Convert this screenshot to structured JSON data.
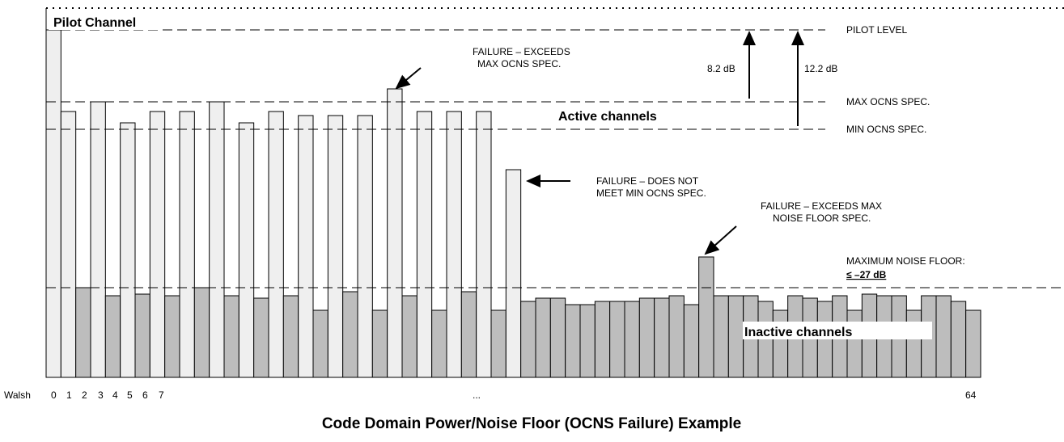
{
  "pilot_channel": "Pilot Channel",
  "active_channels": "Active channels",
  "inactive_channels": "Inactive channels",
  "levels": {
    "pilot": "PILOT LEVEL",
    "max_ocns": "MAX OCNS SPEC.",
    "min_ocns": "MIN OCNS SPEC.",
    "noise_floor": [
      "MAXIMUM NOISE FLOOR:",
      "≤ –27 dB"
    ]
  },
  "arrows": [
    "8.2 dB",
    "12.2 dB"
  ],
  "annotations": [
    [
      "FAILURE – EXCEEDS",
      "MAX OCNS SPEC."
    ],
    [
      "FAILURE – DOES NOT",
      "MEET MIN OCNS SPEC."
    ],
    [
      "FAILURE – EXCEEDS MAX",
      "NOISE FLOOR SPEC."
    ]
  ],
  "axis": {
    "label": "Walsh",
    "ticks": [
      "0",
      "1",
      "2",
      "3",
      "4",
      "5",
      "6",
      "7"
    ],
    "ellipsis": "...",
    "end": "64"
  },
  "title": "Code Domain Power/Noise Floor (OCNS Failure) Example"
}
